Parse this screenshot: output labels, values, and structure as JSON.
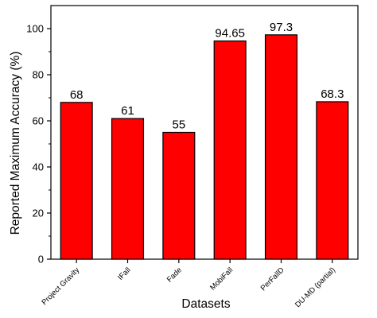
{
  "chart_data": {
    "type": "bar",
    "categories": [
      "Project Gravity",
      "IFall",
      "Fade",
      "MobiFall",
      "PerFallD",
      "DU-MD (partial)"
    ],
    "values": [
      68,
      61,
      55,
      94.65,
      97.3,
      68.3
    ],
    "data_labels": [
      "68",
      "61",
      "55",
      "94.65",
      "97.3",
      "68.3"
    ],
    "xlabel": "Datasets",
    "ylabel": "Reported Maximum Accuracy (%)",
    "ylim": [
      0,
      110
    ],
    "yticks": [
      0,
      20,
      40,
      60,
      80,
      100
    ],
    "grid": false,
    "legend": "none",
    "bar_color": "#ff0000",
    "bar_edge_color": "#000000"
  }
}
